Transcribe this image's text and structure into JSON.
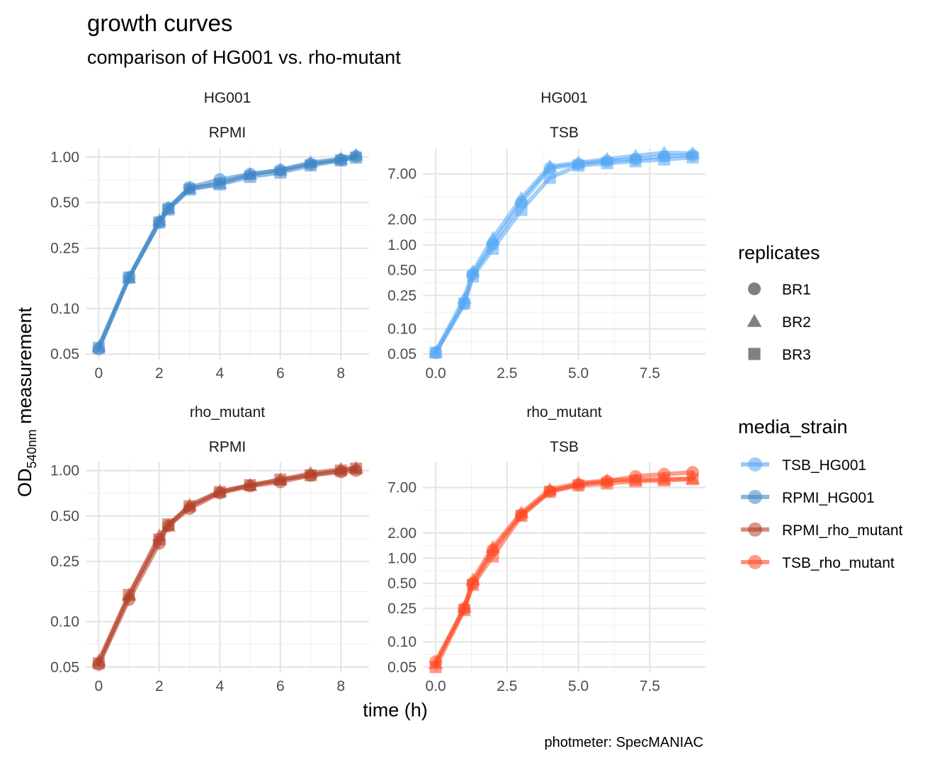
{
  "title": "growth curves",
  "subtitle": "comparison of HG001 vs. rho-mutant",
  "caption": "photmeter: SpecMANIAC",
  "x_axis_label": "time (h)",
  "y_axis_label_main": "OD",
  "y_axis_label_sub": "540nm",
  "y_axis_label_rest": " measurement",
  "legend_replicates": {
    "title": "replicates",
    "items": [
      {
        "label": "BR1",
        "shape": "circle"
      },
      {
        "label": "BR2",
        "shape": "triangle"
      },
      {
        "label": "BR3",
        "shape": "square"
      }
    ]
  },
  "legend_media_strain": {
    "title": "media_strain",
    "items": [
      {
        "label": "TSB_HG001",
        "color": "#56A8F5"
      },
      {
        "label": "RPMI_HG001",
        "color": "#3F86C8"
      },
      {
        "label": "RPMI_rho_mutant",
        "color": "#B5412A"
      },
      {
        "label": "TSB_rho_mutant",
        "color": "#FF4A26"
      }
    ]
  },
  "chart_data": {
    "type": "line",
    "facets": [
      "strain",
      "media"
    ],
    "x_scale": "linear",
    "y_scale": "log10",
    "grid": true,
    "legend_position": "right",
    "panels": [
      {
        "strip_top": "HG001",
        "strip_bottom": "RPMI",
        "color": "#3F86C8",
        "xlim": [
          -0.43,
          8.93
        ],
        "x_ticks": [
          0,
          2,
          4,
          6,
          8
        ],
        "x_tick_labels": [
          "0",
          "2",
          "4",
          "6",
          "8"
        ],
        "ylim": [
          0.046,
          1.135
        ],
        "y_ticks": [
          0.05,
          0.1,
          0.25,
          0.5,
          1
        ],
        "y_tick_labels": [
          "0.05",
          "0.10",
          "0.25",
          "0.50",
          "1.00"
        ],
        "series": [
          {
            "name": "BR1",
            "x": [
              0,
              1,
              2,
              2.3,
              3,
              4,
              5,
              6,
              7,
              8,
              8.5
            ],
            "y": [
              0.054,
              0.16,
              0.37,
              0.46,
              0.63,
              0.71,
              0.77,
              0.82,
              0.9,
              0.96,
              1.01
            ]
          },
          {
            "name": "BR2",
            "x": [
              0,
              1,
              2,
              2.3,
              3,
              4,
              5,
              6,
              7,
              8,
              8.5
            ],
            "y": [
              0.056,
              0.16,
              0.38,
              0.46,
              0.62,
              0.67,
              0.77,
              0.82,
              0.92,
              0.97,
              1.03
            ]
          },
          {
            "name": "BR3",
            "x": [
              0,
              1,
              2,
              2.3,
              3,
              4,
              5,
              6,
              7,
              8,
              8.5
            ],
            "y": [
              0.055,
              0.16,
              0.37,
              0.45,
              0.61,
              0.66,
              0.74,
              0.79,
              0.88,
              0.95,
              0.99
            ]
          }
        ]
      },
      {
        "strip_top": "HG001",
        "strip_bottom": "TSB",
        "color": "#56A8F5",
        "xlim": [
          -0.45,
          9.45
        ],
        "x_ticks": [
          0,
          2.5,
          5,
          7.5
        ],
        "x_tick_labels": [
          "0.0",
          "2.5",
          "5.0",
          "7.5"
        ],
        "ylim": [
          0.043,
          14
        ],
        "y_ticks": [
          0.05,
          0.1,
          0.25,
          0.5,
          1,
          2,
          7
        ],
        "y_tick_labels": [
          "0.05",
          "0.10",
          "0.25",
          "0.50",
          "1.00",
          "2.00",
          "7.00"
        ],
        "series": [
          {
            "name": "BR1",
            "x": [
              0,
              1,
              1.3,
              2,
              3,
              4,
              5,
              6,
              7,
              8,
              9
            ],
            "y": [
              0.052,
              0.2,
              0.45,
              1.02,
              3.2,
              8.2,
              9.2,
              10.0,
              10.5,
              11.3,
              11.7
            ]
          },
          {
            "name": "BR2",
            "x": [
              0,
              1,
              1.3,
              2,
              3,
              4,
              5,
              6,
              7,
              8,
              9
            ],
            "y": [
              0.053,
              0.23,
              0.48,
              1.2,
              3.6,
              8.6,
              9.5,
              10.5,
              11.5,
              12.5,
              12.3
            ]
          },
          {
            "name": "BR3",
            "x": [
              0,
              1,
              1.3,
              2,
              3,
              4,
              5,
              6,
              7,
              8,
              9
            ],
            "y": [
              0.052,
              0.2,
              0.42,
              0.9,
              2.6,
              6.3,
              8.8,
              9.4,
              9.9,
              10.4,
              11.0
            ]
          }
        ]
      },
      {
        "strip_top": "rho_mutant",
        "strip_bottom": "RPMI",
        "color": "#B5412A",
        "xlim": [
          -0.43,
          8.93
        ],
        "x_ticks": [
          0,
          2,
          4,
          6,
          8
        ],
        "x_tick_labels": [
          "0",
          "2",
          "4",
          "6",
          "8"
        ],
        "ylim": [
          0.046,
          1.135
        ],
        "y_ticks": [
          0.05,
          0.1,
          0.25,
          0.5,
          1
        ],
        "y_tick_labels": [
          "0.05",
          "0.10",
          "0.25",
          "0.50",
          "1.00"
        ],
        "series": [
          {
            "name": "BR1",
            "x": [
              0,
              1,
              2,
              2.3,
              3,
              4,
              5,
              6,
              7,
              8,
              8.5
            ],
            "y": [
              0.052,
              0.14,
              0.33,
              0.43,
              0.56,
              0.71,
              0.79,
              0.84,
              0.93,
              0.98,
              1.0
            ]
          },
          {
            "name": "BR2",
            "x": [
              0,
              1,
              2,
              2.3,
              3,
              4,
              5,
              6,
              7,
              8,
              8.5
            ],
            "y": [
              0.055,
              0.15,
              0.37,
              0.43,
              0.59,
              0.73,
              0.8,
              0.87,
              0.96,
              1.02,
              1.04
            ]
          },
          {
            "name": "BR3",
            "x": [
              0,
              1,
              2,
              2.3,
              3,
              4,
              5,
              6,
              7,
              8,
              8.5
            ],
            "y": [
              0.053,
              0.15,
              0.35,
              0.44,
              0.58,
              0.72,
              0.8,
              0.87,
              0.93,
              1.0,
              1.03
            ]
          }
        ]
      },
      {
        "strip_top": "rho_mutant",
        "strip_bottom": "TSB",
        "color": "#FF4A26",
        "xlim": [
          -0.45,
          9.45
        ],
        "x_ticks": [
          0,
          2.5,
          5,
          7.5
        ],
        "x_tick_labels": [
          "0.0",
          "2.5",
          "5.0",
          "7.5"
        ],
        "ylim": [
          0.043,
          14
        ],
        "y_ticks": [
          0.05,
          0.1,
          0.25,
          0.5,
          1,
          2,
          7
        ],
        "y_tick_labels": [
          "0.05",
          "0.10",
          "0.25",
          "0.50",
          "1.00",
          "2.00",
          "7.00"
        ],
        "series": [
          {
            "name": "BR1",
            "x": [
              0,
              1,
              1.3,
              2,
              3,
              4,
              5,
              6,
              7,
              8,
              9
            ],
            "y": [
              0.058,
              0.25,
              0.5,
              1.25,
              3.3,
              6.3,
              7.6,
              8.3,
              9.5,
              10.1,
              10.6
            ]
          },
          {
            "name": "BR2",
            "x": [
              0,
              1,
              1.3,
              2,
              3,
              4,
              5,
              6,
              7,
              8,
              9
            ],
            "y": [
              0.055,
              0.26,
              0.55,
              1.35,
              3.5,
              6.6,
              7.9,
              8.5,
              8.6,
              8.8,
              8.9
            ]
          },
          {
            "name": "BR3",
            "x": [
              0,
              1,
              1.3,
              2,
              3,
              4,
              5,
              6,
              7,
              8,
              9
            ],
            "y": [
              0.05,
              0.24,
              0.48,
              1.05,
              3.2,
              6.2,
              7.4,
              7.8,
              8.3,
              8.5,
              8.8
            ]
          }
        ]
      }
    ]
  }
}
